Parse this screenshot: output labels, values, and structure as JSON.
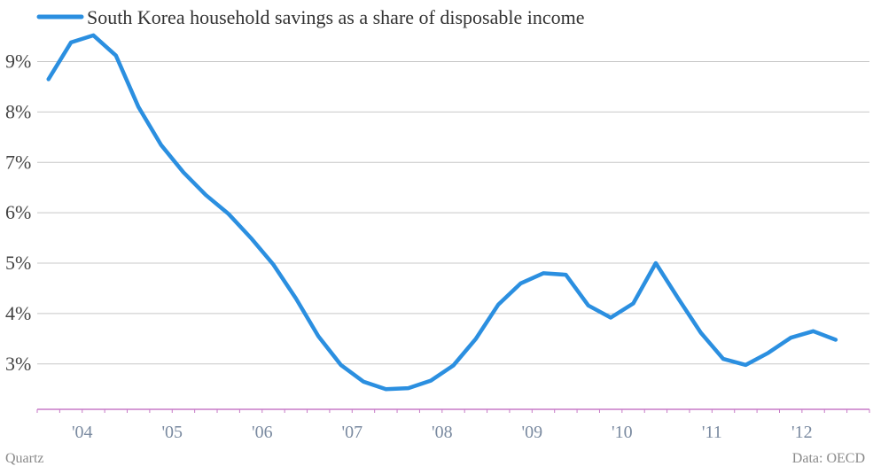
{
  "chart_data": {
    "type": "line",
    "title": "",
    "xlabel": "",
    "ylabel": "",
    "legend_position": "top-left",
    "grid": true,
    "ylim": [
      2.1,
      9.8
    ],
    "y_ticks": [
      "3%",
      "4%",
      "5%",
      "6%",
      "7%",
      "8%",
      "9%"
    ],
    "y_tick_values": [
      3,
      4,
      5,
      6,
      7,
      8,
      9
    ],
    "x_tick_labels": [
      "'04",
      "'05",
      "'06",
      "'07",
      "'08",
      "'09",
      "'10",
      "'11",
      "'12"
    ],
    "x_tick_values": [
      2004.0,
      2005.0,
      2006.0,
      2007.0,
      2008.0,
      2009.0,
      2010.0,
      2011.0,
      2012.0
    ],
    "x_range": [
      2003.5,
      2012.75
    ],
    "series": [
      {
        "name": "South Korea household savings as a share of disposable income",
        "color": "#2b8fe0",
        "x": [
          2003.625,
          2003.875,
          2004.125,
          2004.375,
          2004.625,
          2004.875,
          2005.125,
          2005.375,
          2005.625,
          2005.875,
          2006.125,
          2006.375,
          2006.625,
          2006.875,
          2007.125,
          2007.375,
          2007.625,
          2007.875,
          2008.125,
          2008.375,
          2008.625,
          2008.875,
          2009.125,
          2009.375,
          2009.625,
          2009.875,
          2010.125,
          2010.375,
          2010.625,
          2010.875,
          2011.125,
          2011.375,
          2011.625,
          2011.875,
          2012.125,
          2012.375
        ],
        "values": [
          8.65,
          9.38,
          9.52,
          9.12,
          8.1,
          7.35,
          6.8,
          6.35,
          5.98,
          5.5,
          4.97,
          4.3,
          3.55,
          2.98,
          2.65,
          2.5,
          2.52,
          2.67,
          2.97,
          3.5,
          4.18,
          4.6,
          4.8,
          4.77,
          4.16,
          3.92,
          4.2,
          5.0,
          4.3,
          3.62,
          3.1,
          2.98,
          3.22,
          3.52,
          3.65,
          3.48
        ]
      }
    ]
  },
  "footer": {
    "source_left": "Quartz",
    "source_right": "Data: OECD"
  }
}
